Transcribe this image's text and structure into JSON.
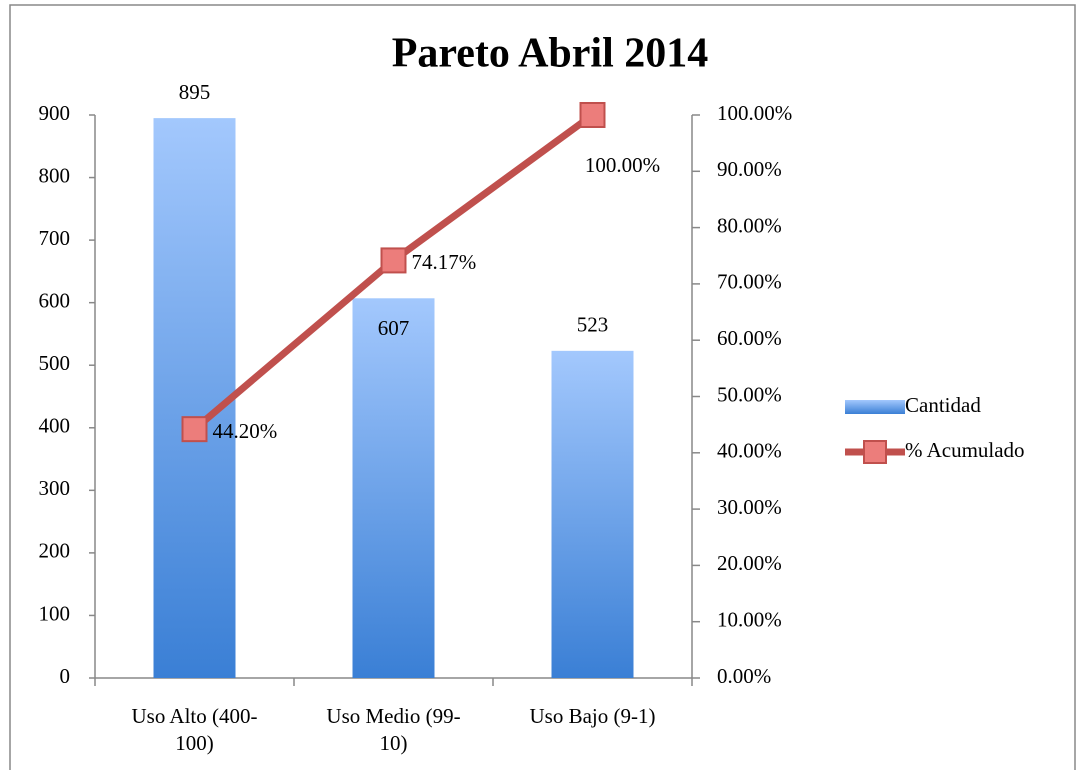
{
  "chart_data": {
    "type": "pareto",
    "title": "Pareto Abril 2014",
    "categories": [
      "Uso Alto (400-100)",
      "Uso Medio (99-10)",
      "Uso Bajo (9-1)"
    ],
    "series": [
      {
        "name": "Cantidad",
        "type": "bar",
        "color": "#4f81bd",
        "values": [
          895,
          607,
          523
        ]
      },
      {
        "name": "% Acumulado",
        "type": "line",
        "axis": "y2",
        "color": "#c0504d",
        "values": [
          44.2,
          74.17,
          100
        ],
        "value_labels": [
          "44.20%",
          "74.17%",
          "100.00%"
        ]
      }
    ],
    "ylim": [
      0,
      900
    ],
    "yticks": [
      0,
      100,
      200,
      300,
      400,
      500,
      600,
      700,
      800,
      900
    ],
    "y2lim": [
      0,
      100
    ],
    "y2ticks": [
      {
        "value": 0,
        "label": "0.00%"
      },
      {
        "value": 10,
        "label": "10.00%"
      },
      {
        "value": 20,
        "label": "20.00%"
      },
      {
        "value": 30,
        "label": "30.00%"
      },
      {
        "value": 40,
        "label": "40.00%"
      },
      {
        "value": 50,
        "label": "50.00%"
      },
      {
        "value": 60,
        "label": "60.00%"
      },
      {
        "value": 70,
        "label": "70.00%"
      },
      {
        "value": 80,
        "label": "80.00%"
      },
      {
        "value": 90,
        "label": "90.00%"
      },
      {
        "value": 100,
        "label": "100.00%"
      }
    ],
    "legend": "right",
    "grid": false
  }
}
